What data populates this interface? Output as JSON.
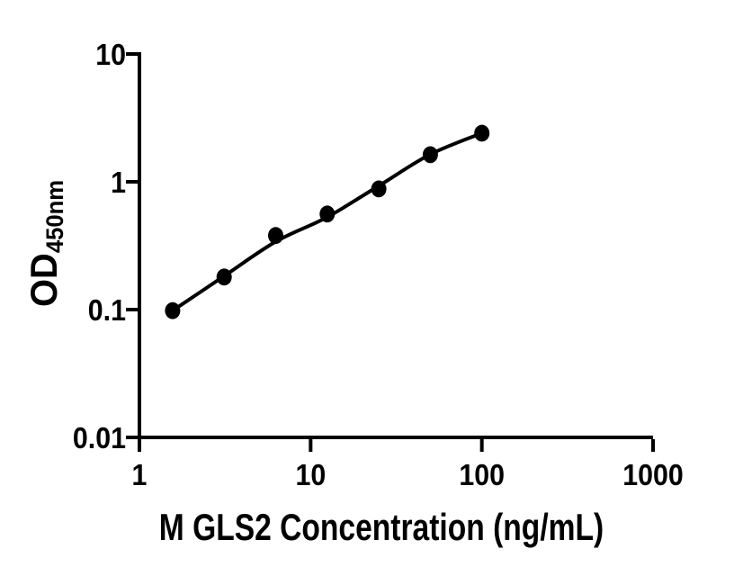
{
  "chart_data": {
    "type": "scatter",
    "title": "",
    "xlabel": "M GLS2 Concentration (ng/mL)",
    "ylabel": "OD",
    "ylabel_subscript": "450nm",
    "x": [
      1.5625,
      3.125,
      6.25,
      12.5,
      25,
      50,
      100
    ],
    "y": [
      0.098,
      0.18,
      0.38,
      0.56,
      0.88,
      1.63,
      2.4
    ],
    "fit_y": [
      0.098,
      0.183,
      0.34,
      0.53,
      0.93,
      1.64,
      2.4
    ],
    "xscale": "log",
    "yscale": "log",
    "xlim": [
      1,
      1000
    ],
    "ylim": [
      0.01,
      10
    ],
    "x_ticks": [
      1,
      10,
      100,
      1000
    ],
    "x_tick_labels": [
      "1",
      "10",
      "100",
      "1000"
    ],
    "y_ticks": [
      0.01,
      0.1,
      1,
      10
    ],
    "y_tick_labels": [
      "0.01",
      "0.1",
      "1",
      "10"
    ],
    "grid": false,
    "legend": null,
    "marker_color": "#000000",
    "line_color": "#000000",
    "axis_color": "#000000",
    "background_color": "#ffffff"
  }
}
